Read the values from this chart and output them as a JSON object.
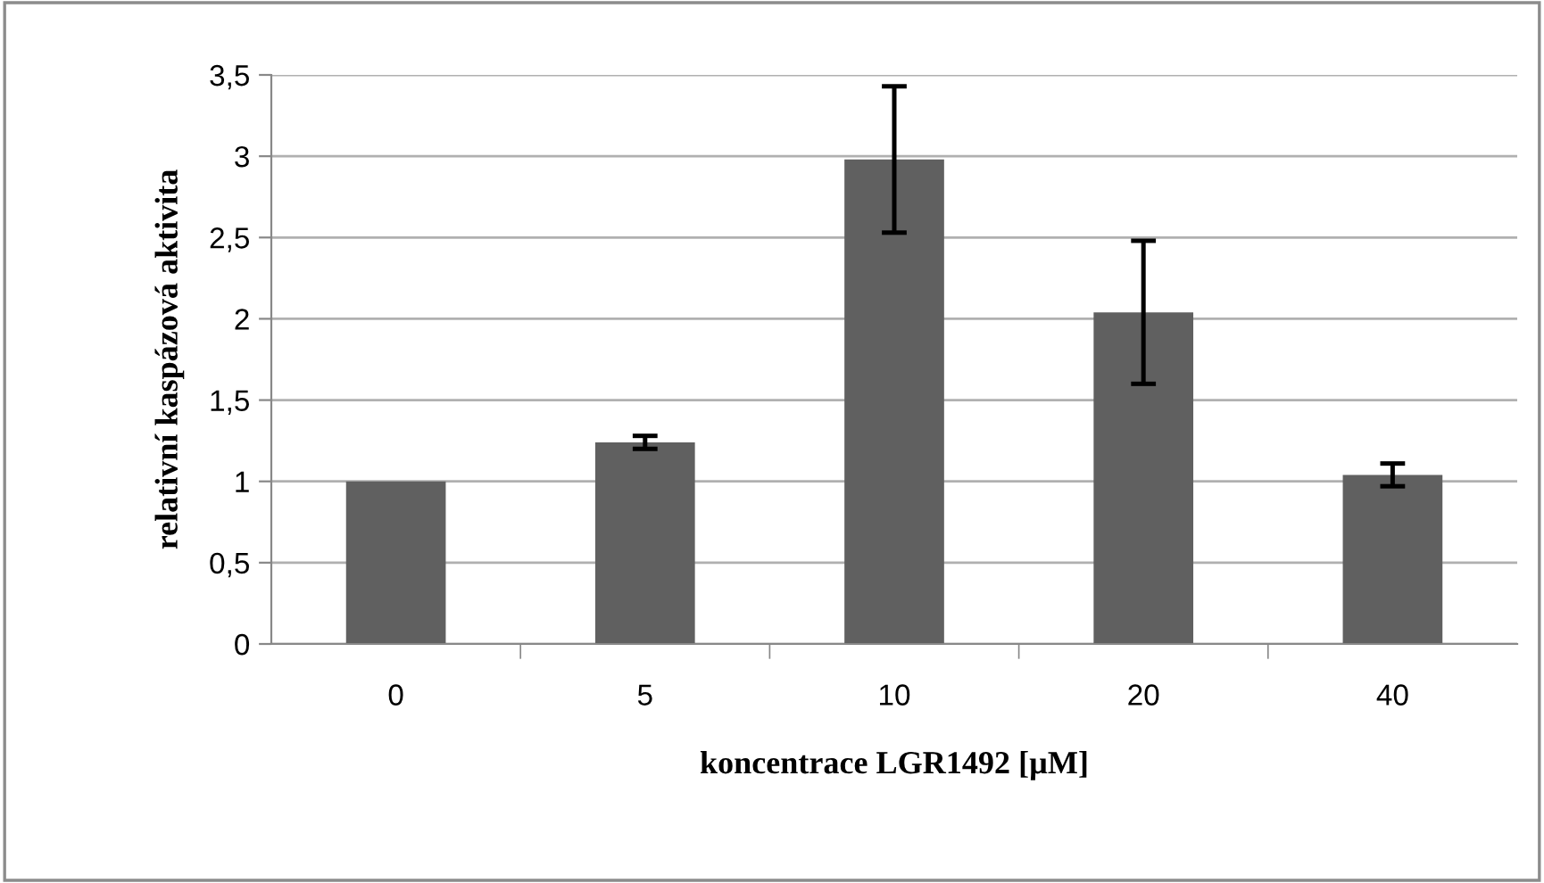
{
  "chart_data": {
    "type": "bar",
    "xlabel": "koncentrace LGR1492 [µM]",
    "ylabel": "relativní kaspázová aktivita",
    "categories": [
      "0",
      "5",
      "10",
      "20",
      "40"
    ],
    "values": [
      1.0,
      1.24,
      2.98,
      2.04,
      1.04
    ],
    "errors": [
      null,
      0.04,
      0.45,
      0.44,
      0.07
    ],
    "color": "#606060",
    "ylim": [
      0,
      3.5
    ],
    "yticks": [
      {
        "value": 0,
        "label": "0"
      },
      {
        "value": 0.5,
        "label": "0,5"
      },
      {
        "value": 1,
        "label": "1"
      },
      {
        "value": 1.5,
        "label": "1,5"
      },
      {
        "value": 2,
        "label": "2"
      },
      {
        "value": 2.5,
        "label": "2,5"
      },
      {
        "value": 3,
        "label": "3"
      },
      {
        "value": 3.5,
        "label": "3,5"
      }
    ],
    "grid": "y",
    "legend": false
  }
}
